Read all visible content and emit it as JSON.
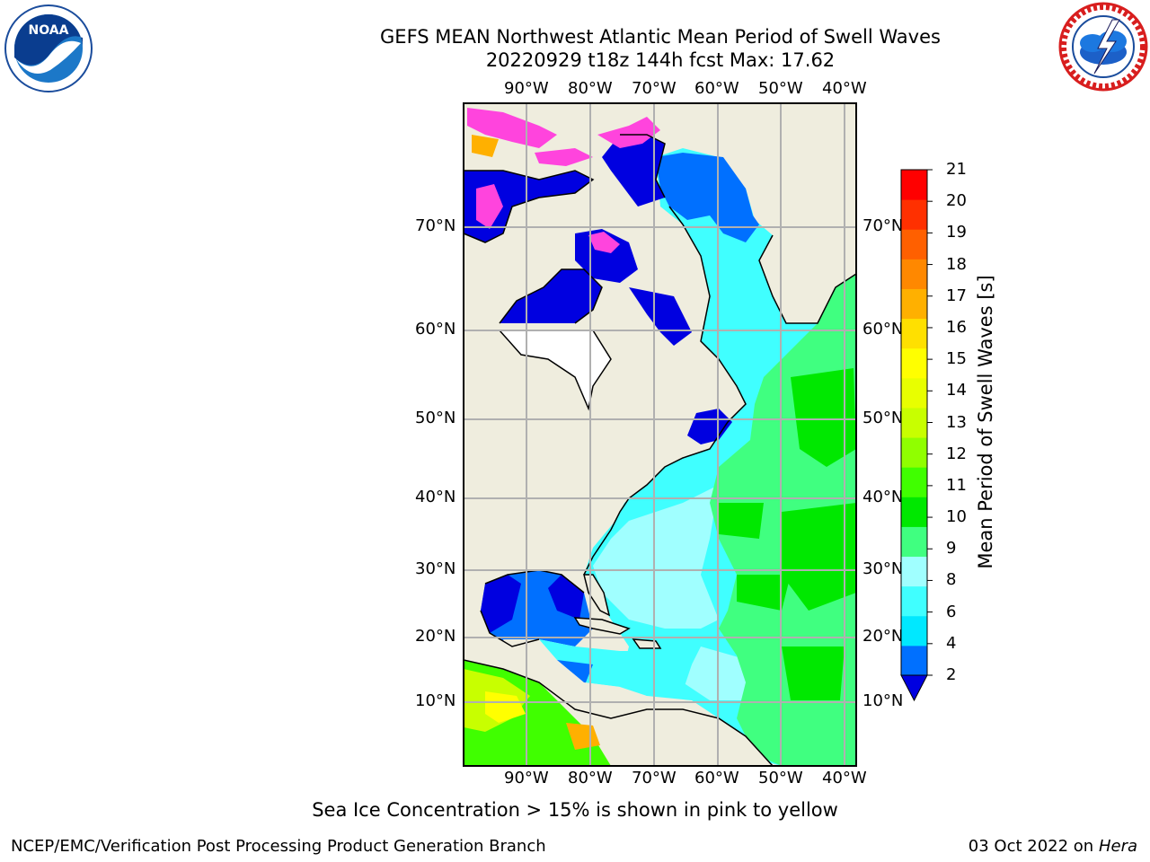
{
  "title_line1": "GEFS MEAN Northwest Atlantic Mean Period of Swell Waves",
  "title_line2": "20220929 t18z 144h fcst   Max: 17.62",
  "logos": {
    "left": "noaa-logo",
    "right": "nws-logo"
  },
  "map": {
    "lon_labels": [
      "90°W",
      "80°W",
      "70°W",
      "60°W",
      "50°W",
      "40°W"
    ],
    "lat_labels": [
      "70°N",
      "60°N",
      "50°N",
      "40°N",
      "30°N",
      "20°N",
      "10°N"
    ],
    "colors": {
      "land": "#efedde",
      "ice_pink": "#ff44dd",
      "frame": "#000000",
      "grid": "#b0b0b0"
    }
  },
  "colorbar": {
    "title": "Mean Period of Swell Waves [s]",
    "ticks": [
      "21",
      "20",
      "19",
      "18",
      "17",
      "16",
      "15",
      "14",
      "13",
      "12",
      "11",
      "10",
      "9",
      "8",
      "6",
      "4",
      "2"
    ],
    "colors": [
      "#0000e0",
      "#0070ff",
      "#00e8ff",
      "#40ffff",
      "#a0ffff",
      "#40ff80",
      "#00e800",
      "#40ff00",
      "#90ff00",
      "#c8ff00",
      "#e8ff00",
      "#ffff00",
      "#ffe000",
      "#ffb000",
      "#ff8800",
      "#ff6000",
      "#ff3000",
      "#ff0000"
    ]
  },
  "caption": "Sea Ice Concentration > 15% is shown in pink to yellow",
  "footer_left": "NCEP/EMC/Verification Post Processing Product Generation Branch",
  "footer_right_date": "03 Oct 2022 on ",
  "footer_right_host": "Hera"
}
